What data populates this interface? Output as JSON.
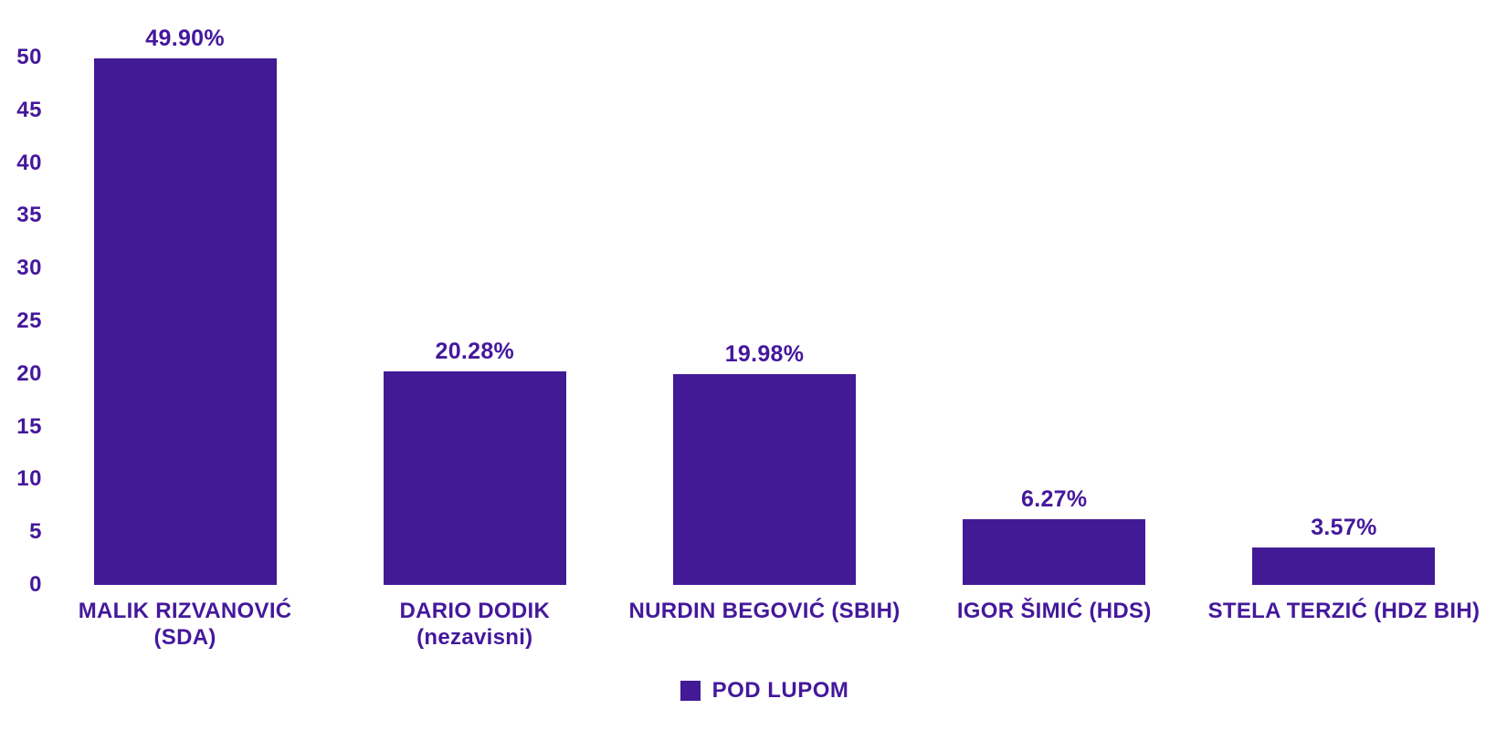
{
  "colors": {
    "bar": "#421A96",
    "text": "#44189B",
    "background": "#FFFFFF"
  },
  "chart_data": {
    "type": "bar",
    "title": "",
    "xlabel": "",
    "ylabel": "",
    "grid": false,
    "ylim": [
      0,
      50
    ],
    "yticks": [
      0,
      5,
      10,
      15,
      20,
      25,
      30,
      35,
      40,
      45,
      50
    ],
    "categories": [
      "MALIK RIZVANOVIĆ (SDA)",
      "DARIO DODIK (nezavisni)",
      "NURDIN BEGOVIĆ (SBIH)",
      "IGOR ŠIMIĆ (HDS)",
      "STELA TERZIĆ (HDZ BIH)"
    ],
    "category_lines": [
      [
        "MALIK RIZVANOVIĆ",
        "(SDA)"
      ],
      [
        "DARIO DODIK",
        "(nezavisni)"
      ],
      [
        "NURDIN BEGOVIĆ (SBIH)"
      ],
      [
        "IGOR ŠIMIĆ (HDS)"
      ],
      [
        "STELA TERZIĆ (HDZ BIH)"
      ]
    ],
    "series": [
      {
        "name": "POD LUPOM",
        "values": [
          49.9,
          20.28,
          19.98,
          6.27,
          3.57
        ]
      }
    ],
    "value_labels": [
      "49.90%",
      "20.28%",
      "19.98%",
      "6.27%",
      "3.57%"
    ],
    "legend": {
      "label": "POD LUPOM",
      "position": "bottom"
    }
  }
}
